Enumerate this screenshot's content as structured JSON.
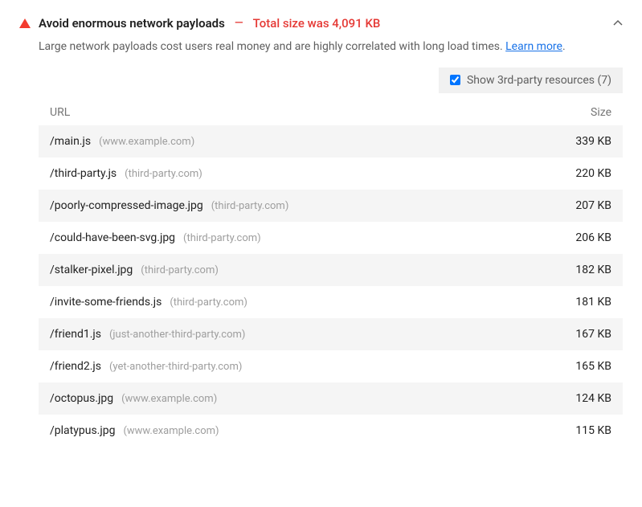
{
  "audit": {
    "title": "Avoid enormous network payloads",
    "metric": "Total size was 4,091 KB",
    "description_pre": "Large network payloads cost users real money and are highly correlated with long load times. ",
    "learn_more": "Learn more",
    "description_post": ".",
    "toggle_label": "Show 3rd-party resources (7)",
    "toggle_checked": true,
    "columns": {
      "url": "URL",
      "size": "Size"
    },
    "rows": [
      {
        "path": "/main.js",
        "domain": "(www.example.com)",
        "size": "339 KB"
      },
      {
        "path": "/third-party.js",
        "domain": "(third-party.com)",
        "size": "220 KB"
      },
      {
        "path": "/poorly-compressed-image.jpg",
        "domain": "(third-party.com)",
        "size": "207 KB"
      },
      {
        "path": "/could-have-been-svg.jpg",
        "domain": "(third-party.com)",
        "size": "206 KB"
      },
      {
        "path": "/stalker-pixel.jpg",
        "domain": "(third-party.com)",
        "size": "182 KB"
      },
      {
        "path": "/invite-some-friends.js",
        "domain": "(third-party.com)",
        "size": "181 KB"
      },
      {
        "path": "/friend1.js",
        "domain": "(just-another-third-party.com)",
        "size": "167 KB"
      },
      {
        "path": "/friend2.js",
        "domain": "(yet-another-third-party.com)",
        "size": "165 KB"
      },
      {
        "path": "/octopus.jpg",
        "domain": "(www.example.com)",
        "size": "124 KB"
      },
      {
        "path": "/platypus.jpg",
        "domain": "(www.example.com)",
        "size": "115 KB"
      }
    ]
  },
  "colors": {
    "error": "#e53935",
    "warn_icon": "#f33b2e",
    "text": "#212121",
    "muted": "#757575",
    "domain": "#9e9e9e",
    "link": "#1a73e8",
    "row_alt": "#f5f5f5",
    "toggle_bg": "#f1f1f1",
    "background": "#ffffff"
  }
}
